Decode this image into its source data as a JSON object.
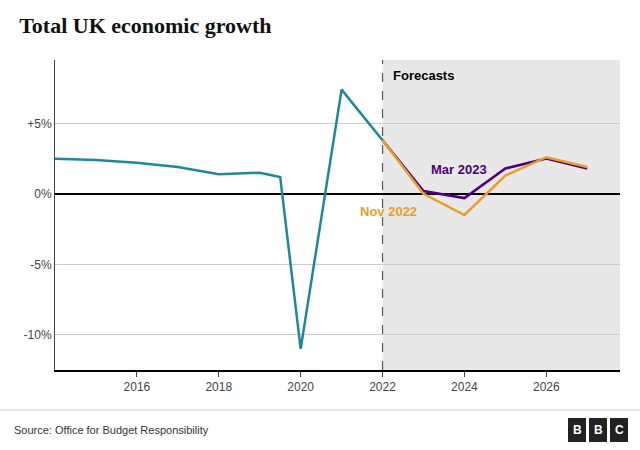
{
  "chart_data": {
    "type": "line",
    "title": "Total UK economic growth",
    "annotations": [
      "Forecasts",
      "Source: Office for Budget Responsibility",
      "B",
      "B",
      "C"
    ],
    "series": [
      {
        "color": "#1a8a9a",
        "x": [
          2014,
          2015,
          2016,
          2017,
          2018,
          2019,
          2019.5,
          2020,
          2021,
          2022
        ],
        "values": [
          2.5,
          2.4,
          2.2,
          1.9,
          1.4,
          1.5,
          1.2,
          -11.0,
          7.4,
          3.8
        ]
      },
      {
        "name": "Mar 2023",
        "color": "#4b0082",
        "x": [
          2022,
          2023,
          2024,
          2025,
          2026,
          2027
        ],
        "values": [
          3.8,
          0.2,
          -0.3,
          1.8,
          2.5,
          1.8
        ]
      },
      {
        "name": "Nov 2022",
        "color": "#e8a020",
        "x": [
          2022,
          2023,
          2024,
          2025,
          2026,
          2027
        ],
        "values": [
          3.8,
          0.0,
          -1.5,
          1.3,
          2.6,
          1.9
        ]
      }
    ],
    "xlim": [
      2014,
      2027.8
    ],
    "ylim": [
      -12.5,
      9.5
    ],
    "xticks": [
      2016,
      2018,
      2020,
      2022,
      2024,
      2026
    ],
    "yticks": [
      {
        "value": -10,
        "label": "-10%"
      },
      {
        "value": -5,
        "label": "-5%"
      },
      {
        "value": 0,
        "label": "0%"
      },
      {
        "value": 5,
        "label": "+5%"
      }
    ],
    "grid": "y"
  }
}
